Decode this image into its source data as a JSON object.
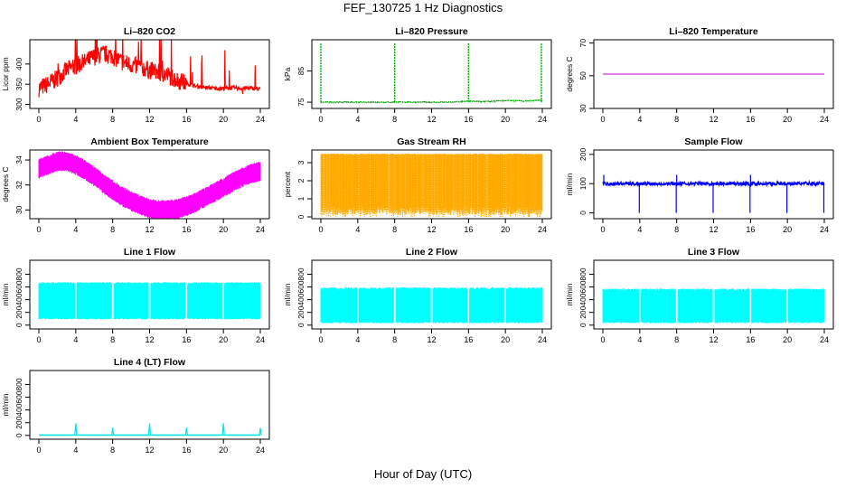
{
  "figure": {
    "title": "FEF_130725  1 Hz Diagnostics",
    "xlabel": "Hour of Day (UTC)"
  },
  "chart_data": [
    {
      "type": "line",
      "title": "Li–820 CO2",
      "ylabel": "Licor ppm",
      "color": "#ff0000",
      "xlim": [
        0,
        24
      ],
      "ylim": [
        290,
        460
      ],
      "xticks": [
        "0",
        "4",
        "8",
        "12",
        "16",
        "20",
        "24"
      ],
      "yticks": [
        "300",
        "350",
        "400"
      ],
      "series": [
        {
          "x": [
            0,
            1,
            2,
            3,
            4,
            5,
            6,
            7,
            8,
            9,
            10,
            11,
            12,
            13,
            14,
            15,
            16,
            17,
            18,
            19,
            20,
            21,
            22,
            23,
            24
          ],
          "values": [
            340,
            350,
            365,
            385,
            395,
            405,
            418,
            425,
            420,
            405,
            398,
            392,
            385,
            378,
            372,
            360,
            352,
            345,
            342,
            340,
            340,
            341,
            340,
            340,
            338
          ]
        }
      ]
    },
    {
      "type": "line",
      "title": "Li–820 Pressure",
      "ylabel": "kPa",
      "color": "#00aa00",
      "xlim": [
        0,
        24
      ],
      "ylim": [
        73,
        95
      ],
      "xticks": [
        "0",
        "4",
        "8",
        "12",
        "16",
        "20",
        "24"
      ],
      "yticks": [
        "75",
        "85"
      ],
      "series": [
        {
          "x": [
            0,
            2,
            4,
            6,
            8,
            10,
            12,
            14,
            16,
            18,
            20,
            22,
            24
          ],
          "values": [
            75,
            75,
            75,
            75,
            75,
            75,
            75,
            75,
            75.3,
            75.2,
            75.5,
            75.4,
            75.6
          ]
        }
      ]
    },
    {
      "type": "line",
      "title": "Li–820 Temperature",
      "ylabel": "degrees C",
      "color": "#cc00cc",
      "xlim": [
        0,
        24
      ],
      "ylim": [
        30,
        72
      ],
      "xticks": [
        "0",
        "4",
        "8",
        "12",
        "16",
        "20",
        "24"
      ],
      "yticks": [
        "30",
        "50",
        "70"
      ],
      "series": [
        {
          "x": [
            0,
            24
          ],
          "values": [
            51,
            51
          ]
        }
      ]
    },
    {
      "type": "line",
      "title": "Ambient Box Temperature",
      "ylabel": "degrees C",
      "color": "#ff00ff",
      "xlim": [
        0,
        24
      ],
      "ylim": [
        29.3,
        34.8
      ],
      "xticks": [
        "0",
        "4",
        "8",
        "12",
        "16",
        "20",
        "24"
      ],
      "yticks": [
        "30",
        "32",
        "34"
      ],
      "series": [
        {
          "x": [
            0,
            1,
            2,
            3,
            4,
            5,
            6,
            7,
            8,
            9,
            10,
            11,
            12,
            13,
            14,
            15,
            16,
            17,
            18,
            19,
            20,
            21,
            22,
            23,
            24
          ],
          "values": [
            33.3,
            33.6,
            33.9,
            33.9,
            33.6,
            33.2,
            32.7,
            32.1,
            31.6,
            31.1,
            30.7,
            30.4,
            30.1,
            30.0,
            30.0,
            30.1,
            30.3,
            30.6,
            31.0,
            31.4,
            31.8,
            32.2,
            32.6,
            32.9,
            33.1
          ]
        }
      ]
    },
    {
      "type": "line",
      "title": "Gas Stream RH",
      "ylabel": "percent",
      "color": "#ffaa00",
      "xlim": [
        0,
        24
      ],
      "ylim": [
        -0.1,
        3.7
      ],
      "xticks": [
        "0",
        "4",
        "8",
        "12",
        "16",
        "20",
        "24"
      ],
      "yticks": [
        "0",
        "1",
        "2",
        "3"
      ],
      "series": [
        {
          "x": [
            0,
            24
          ],
          "values": [
            3.45,
            3.45
          ]
        }
      ]
    },
    {
      "type": "line",
      "title": "Sample Flow",
      "ylabel": "ml/min",
      "color": "#0000ff",
      "xlim": [
        0,
        24
      ],
      "ylim": [
        -20,
        215
      ],
      "xticks": [
        "0",
        "4",
        "8",
        "12",
        "16",
        "20",
        "24"
      ],
      "yticks": [
        "0",
        "100",
        "200"
      ],
      "series": [
        {
          "x": [
            0,
            4,
            8,
            12,
            16,
            20,
            24
          ],
          "values": [
            100,
            100,
            100,
            100,
            100,
            100,
            100
          ]
        }
      ]
    },
    {
      "type": "line",
      "title": "Line 1 Flow",
      "ylabel": "ml/min",
      "color": "#00ffff",
      "xlim": [
        0,
        24
      ],
      "ylim": [
        -60,
        1020
      ],
      "xticks": [
        "0",
        "4",
        "8",
        "12",
        "16",
        "20",
        "24"
      ],
      "yticks": [
        "0",
        "200",
        "400",
        "600",
        "800"
      ],
      "series": [
        {
          "x": [
            0,
            24
          ],
          "values": [
            650,
            650
          ]
        }
      ]
    },
    {
      "type": "line",
      "title": "Line 2 Flow",
      "ylabel": "ml/min",
      "color": "#00ffff",
      "xlim": [
        0,
        24
      ],
      "ylim": [
        -60,
        1020
      ],
      "xticks": [
        "0",
        "4",
        "8",
        "12",
        "16",
        "20",
        "24"
      ],
      "yticks": [
        "0",
        "200",
        "400",
        "600",
        "800"
      ],
      "series": [
        {
          "x": [
            0,
            24
          ],
          "values": [
            570,
            570
          ]
        }
      ]
    },
    {
      "type": "line",
      "title": "Line 3 Flow",
      "ylabel": "ml/min",
      "color": "#00ffff",
      "xlim": [
        0,
        24
      ],
      "ylim": [
        -60,
        1020
      ],
      "xticks": [
        "0",
        "4",
        "8",
        "12",
        "16",
        "20",
        "24"
      ],
      "yticks": [
        "0",
        "200",
        "400",
        "600",
        "800"
      ],
      "series": [
        {
          "x": [
            0,
            24
          ],
          "values": [
            550,
            550
          ]
        }
      ]
    },
    {
      "type": "line",
      "title": "Line 4 (LT) Flow",
      "ylabel": "ml/min",
      "color": "#00e5e5",
      "xlim": [
        0,
        24
      ],
      "ylim": [
        -60,
        1020
      ],
      "xticks": [
        "0",
        "4",
        "8",
        "12",
        "16",
        "20",
        "24"
      ],
      "yticks": [
        "0",
        "200",
        "400",
        "600",
        "800"
      ],
      "series": [
        {
          "x": [
            0,
            4,
            8,
            12,
            16,
            20,
            24
          ],
          "values": [
            5,
            5,
            5,
            5,
            5,
            5,
            5
          ]
        }
      ]
    }
  ]
}
